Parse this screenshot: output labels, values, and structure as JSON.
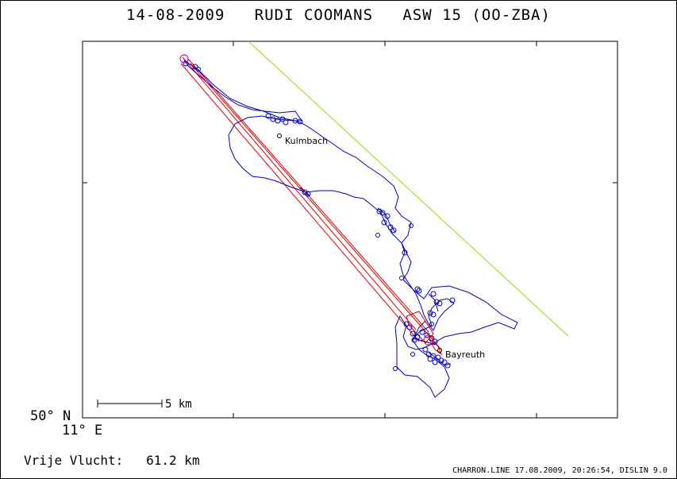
{
  "title": "14-08-2009   RUDI COOMANS   ASW 15 (OO-ZBA)",
  "places": [
    {
      "name": "Kulmbach"
    },
    {
      "name": "Bayreuth"
    }
  ],
  "scale_bar": {
    "label": "5 km"
  },
  "lat_label": "50° N",
  "lon_label": "11° E",
  "distance": {
    "label": "Vrije Vlucht:",
    "value": "61.2 km"
  },
  "footer": "CHARRON.LINE 17.08.2009, 20:26:54, DISLIN 9.0",
  "colors": {
    "track": "#0000c8",
    "task": "#e00000",
    "reference": "#90e000",
    "marker": "#c000c0"
  }
}
